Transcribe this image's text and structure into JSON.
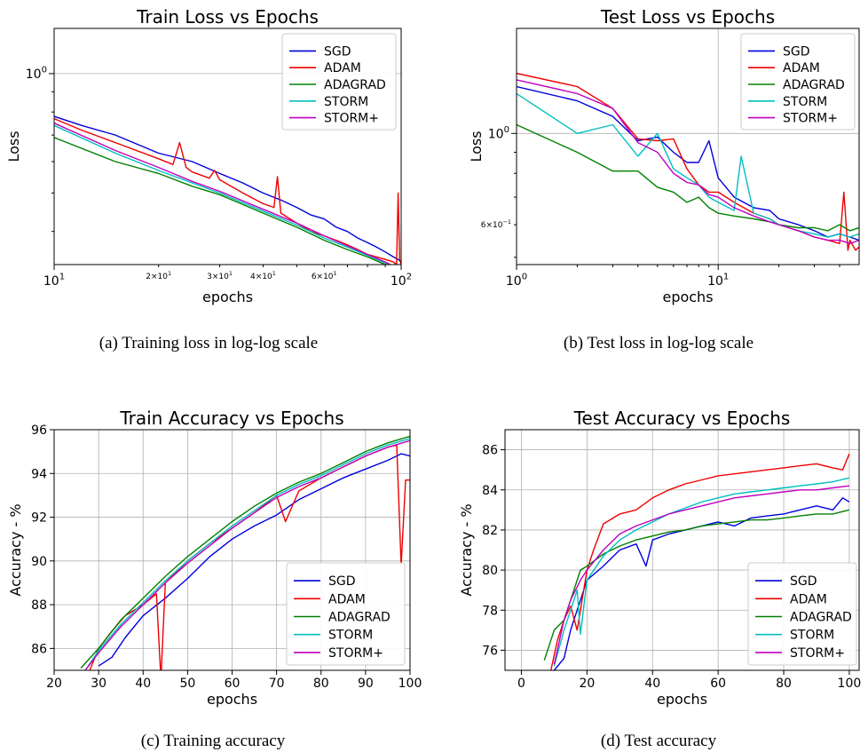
{
  "colors": {
    "SGD": "#0000dd",
    "ADAM": "#ee0000",
    "ADAGRAD": "#008000",
    "STORM": "#00bfbf",
    "STORM+": "#bf00bf"
  },
  "captions": [
    "(a) Training loss in log-log scale",
    "(b) Test loss in log-log scale",
    "(c) Training accuracy",
    "(d) Test accuracy"
  ],
  "chart_data": [
    {
      "type": "line",
      "title": "Train Loss vs Epochs",
      "xlabel": "epochs",
      "ylabel": "Loss",
      "xscale": "log",
      "yscale": "log",
      "xlim": [
        10,
        100
      ],
      "ylim": [
        0.33,
        1.3
      ],
      "legend_position": "top-right",
      "x_ticks": [
        {
          "v": 10,
          "b": "10",
          "e": "1"
        },
        {
          "v": 100,
          "b": "10",
          "e": "2"
        }
      ],
      "x_minor_ticks": [
        {
          "v": 20,
          "b": "2×10",
          "e": "1"
        },
        {
          "v": 30,
          "b": "3×10",
          "e": "1"
        },
        {
          "v": 40,
          "b": "4×10",
          "e": "1"
        },
        {
          "v": 60,
          "b": "6×10",
          "e": "1"
        }
      ],
      "y_ticks": [
        {
          "v": 1,
          "b": "10",
          "e": "0"
        }
      ],
      "series": [
        {
          "name": "SGD",
          "x": [
            10,
            12,
            15,
            20,
            25,
            30,
            35,
            40,
            45,
            50,
            55,
            60,
            65,
            70,
            75,
            80,
            85,
            90,
            95,
            98,
            100
          ],
          "y": [
            0.78,
            0.74,
            0.7,
            0.63,
            0.6,
            0.56,
            0.53,
            0.5,
            0.48,
            0.46,
            0.44,
            0.43,
            0.41,
            0.4,
            0.385,
            0.375,
            0.365,
            0.355,
            0.345,
            0.34,
            0.335
          ]
        },
        {
          "name": "ADAM",
          "x": [
            10,
            12,
            15,
            20,
            22,
            23,
            24,
            25,
            28,
            29,
            30,
            35,
            40,
            43,
            44,
            45,
            50,
            55,
            60,
            65,
            70,
            75,
            80,
            85,
            90,
            95,
            97,
            98,
            99,
            100
          ],
          "y": [
            0.77,
            0.72,
            0.67,
            0.61,
            0.59,
            0.67,
            0.58,
            0.565,
            0.545,
            0.57,
            0.54,
            0.5,
            0.47,
            0.46,
            0.55,
            0.445,
            0.42,
            0.4,
            0.39,
            0.38,
            0.37,
            0.36,
            0.35,
            0.345,
            0.34,
            0.335,
            0.33,
            0.5,
            0.34,
            0.33
          ]
        },
        {
          "name": "ADAGRAD",
          "x": [
            10,
            15,
            20,
            25,
            30,
            40,
            50,
            60,
            70,
            80,
            90,
            100
          ],
          "y": [
            0.69,
            0.6,
            0.56,
            0.52,
            0.495,
            0.445,
            0.41,
            0.38,
            0.36,
            0.345,
            0.33,
            0.315
          ]
        },
        {
          "name": "STORM",
          "x": [
            10,
            15,
            20,
            25,
            30,
            40,
            50,
            60,
            70,
            80,
            90,
            100
          ],
          "y": [
            0.74,
            0.63,
            0.57,
            0.53,
            0.5,
            0.45,
            0.415,
            0.385,
            0.365,
            0.348,
            0.333,
            0.318
          ]
        },
        {
          "name": "STORM+",
          "x": [
            10,
            15,
            20,
            25,
            30,
            40,
            50,
            60,
            70,
            80,
            90,
            100
          ],
          "y": [
            0.75,
            0.64,
            0.58,
            0.535,
            0.505,
            0.455,
            0.42,
            0.39,
            0.368,
            0.35,
            0.335,
            0.32
          ]
        }
      ]
    },
    {
      "type": "line",
      "title": "Test Loss vs Epochs",
      "xlabel": "epochs",
      "ylabel": "Loss",
      "xscale": "log",
      "yscale": "log",
      "xlim": [
        1,
        50
      ],
      "ylim": [
        0.48,
        1.8
      ],
      "legend_position": "top-right",
      "x_ticks": [
        {
          "v": 1,
          "b": "10",
          "e": "0"
        },
        {
          "v": 10,
          "b": "10",
          "e": "1"
        }
      ],
      "y_ticks": [
        {
          "v": 1,
          "b": "10",
          "e": "0"
        }
      ],
      "y_minor_ticks": [
        {
          "v": 0.6,
          "b": "6×10",
          "e": "−1"
        }
      ],
      "series": [
        {
          "name": "SGD",
          "x": [
            1,
            2,
            3,
            4,
            5,
            6,
            7,
            8,
            9,
            10,
            12,
            15,
            18,
            20,
            25,
            30,
            35,
            40,
            45,
            50
          ],
          "y": [
            1.3,
            1.2,
            1.1,
            0.96,
            0.98,
            0.9,
            0.85,
            0.85,
            0.96,
            0.78,
            0.7,
            0.66,
            0.65,
            0.62,
            0.6,
            0.58,
            0.56,
            0.57,
            0.56,
            0.55
          ]
        },
        {
          "name": "ADAM",
          "x": [
            1,
            2,
            3,
            4,
            5,
            6,
            7,
            8,
            9,
            10,
            12,
            15,
            18,
            20,
            25,
            30,
            35,
            40,
            42,
            44,
            45,
            48,
            50
          ],
          "y": [
            1.4,
            1.3,
            1.15,
            0.97,
            0.96,
            0.97,
            0.82,
            0.75,
            0.72,
            0.72,
            0.68,
            0.64,
            0.62,
            0.6,
            0.58,
            0.56,
            0.55,
            0.54,
            0.72,
            0.52,
            0.55,
            0.52,
            0.53
          ]
        },
        {
          "name": "ADAGRAD",
          "x": [
            1,
            2,
            3,
            4,
            5,
            6,
            7,
            8,
            9,
            10,
            12,
            15,
            18,
            20,
            25,
            30,
            35,
            40,
            45,
            50
          ],
          "y": [
            1.05,
            0.9,
            0.81,
            0.81,
            0.74,
            0.72,
            0.68,
            0.7,
            0.66,
            0.64,
            0.63,
            0.62,
            0.61,
            0.6,
            0.59,
            0.59,
            0.58,
            0.6,
            0.58,
            0.59
          ]
        },
        {
          "name": "STORM",
          "x": [
            1,
            2,
            3,
            4,
            5,
            6,
            7,
            8,
            9,
            10,
            12,
            13,
            15,
            18,
            20,
            25,
            30,
            35,
            40,
            45,
            50
          ],
          "y": [
            1.25,
            1.0,
            1.05,
            0.88,
            1.0,
            0.82,
            0.78,
            0.75,
            0.7,
            0.68,
            0.65,
            0.88,
            0.64,
            0.62,
            0.6,
            0.58,
            0.57,
            0.56,
            0.57,
            0.56,
            0.57
          ]
        },
        {
          "name": "STORM+",
          "x": [
            1,
            2,
            3,
            4,
            5,
            6,
            7,
            8,
            9,
            10,
            12,
            15,
            18,
            20,
            25,
            30,
            35,
            40,
            45,
            50
          ],
          "y": [
            1.35,
            1.25,
            1.15,
            0.95,
            0.9,
            0.8,
            0.76,
            0.75,
            0.71,
            0.7,
            0.66,
            0.63,
            0.61,
            0.6,
            0.58,
            0.56,
            0.55,
            0.55,
            0.54,
            0.55
          ]
        }
      ]
    },
    {
      "type": "line",
      "title": "Train Accuracy vs Epochs",
      "xlabel": "epochs",
      "ylabel": "Accuracy - %",
      "xlim": [
        20,
        100
      ],
      "ylim": [
        85,
        96
      ],
      "grid": true,
      "legend_position": "lower-right",
      "x_ticks": [
        20,
        30,
        40,
        50,
        60,
        70,
        80,
        90,
        100
      ],
      "y_ticks": [
        86,
        88,
        90,
        92,
        94,
        96
      ],
      "series": [
        {
          "name": "SGD",
          "x": [
            30,
            33,
            36,
            40,
            45,
            50,
            55,
            60,
            65,
            70,
            75,
            80,
            85,
            90,
            95,
            98,
            100
          ],
          "y": [
            85.2,
            85.6,
            86.5,
            87.5,
            88.3,
            89.2,
            90.2,
            91.0,
            91.6,
            92.1,
            92.8,
            93.3,
            93.8,
            94.2,
            94.6,
            94.9,
            94.8
          ]
        },
        {
          "name": "ADAM",
          "x": [
            28,
            30,
            33,
            36,
            40,
            43,
            44,
            45,
            50,
            55,
            60,
            65,
            70,
            72,
            75,
            80,
            85,
            90,
            95,
            97,
            98,
            99,
            100
          ],
          "y": [
            85.0,
            86.0,
            86.8,
            87.5,
            88.0,
            88.5,
            84.6,
            89.0,
            90.0,
            90.8,
            91.5,
            92.2,
            93.0,
            91.8,
            93.2,
            93.8,
            94.3,
            94.8,
            95.2,
            95.3,
            89.8,
            93.7,
            93.7
          ]
        },
        {
          "name": "ADAGRAD",
          "x": [
            26,
            30,
            35,
            40,
            45,
            50,
            55,
            60,
            65,
            70,
            75,
            80,
            85,
            90,
            95,
            100
          ],
          "y": [
            85.1,
            86.0,
            87.3,
            88.3,
            89.3,
            90.2,
            91.0,
            91.8,
            92.5,
            93.1,
            93.6,
            94.0,
            94.5,
            95.0,
            95.4,
            95.7
          ]
        },
        {
          "name": "STORM",
          "x": [
            27,
            30,
            35,
            40,
            45,
            50,
            55,
            60,
            65,
            70,
            75,
            80,
            85,
            90,
            95,
            100
          ],
          "y": [
            85.0,
            85.9,
            87.1,
            88.1,
            89.1,
            90.0,
            90.8,
            91.6,
            92.3,
            93.0,
            93.5,
            93.9,
            94.4,
            94.9,
            95.3,
            95.6
          ]
        },
        {
          "name": "STORM+",
          "x": [
            27,
            30,
            35,
            40,
            45,
            50,
            55,
            60,
            65,
            70,
            75,
            80,
            85,
            90,
            95,
            100
          ],
          "y": [
            85.0,
            85.8,
            87.0,
            88.0,
            89.0,
            89.9,
            90.7,
            91.5,
            92.2,
            92.9,
            93.4,
            93.8,
            94.3,
            94.8,
            95.2,
            95.5
          ]
        }
      ]
    },
    {
      "type": "line",
      "title": "Test Accuracy vs Epochs",
      "xlabel": "epochs",
      "ylabel": "Accuracy - %",
      "xlim": [
        -5,
        103
      ],
      "ylim": [
        75,
        87
      ],
      "grid": true,
      "legend_position": "lower-right",
      "x_ticks": [
        0,
        20,
        40,
        60,
        80,
        100
      ],
      "y_ticks": [
        76,
        78,
        80,
        82,
        84,
        86
      ],
      "series": [
        {
          "name": "SGD",
          "x": [
            10,
            13,
            15,
            18,
            20,
            25,
            30,
            35,
            38,
            40,
            45,
            50,
            55,
            60,
            65,
            70,
            75,
            80,
            85,
            90,
            95,
            98,
            100
          ],
          "y": [
            75.0,
            75.6,
            77.0,
            78.5,
            79.5,
            80.2,
            81.0,
            81.3,
            80.2,
            81.5,
            81.8,
            82.0,
            82.2,
            82.4,
            82.2,
            82.6,
            82.7,
            82.8,
            83.0,
            83.2,
            83.0,
            83.6,
            83.4
          ]
        },
        {
          "name": "ADAM",
          "x": [
            9,
            11,
            13,
            15,
            17,
            19,
            20,
            22,
            25,
            30,
            35,
            40,
            45,
            50,
            55,
            60,
            65,
            70,
            75,
            80,
            85,
            90,
            95,
            98,
            100
          ],
          "y": [
            75.0,
            76.5,
            77.5,
            78.2,
            77.0,
            79.0,
            80.0,
            81.0,
            82.3,
            82.8,
            83.0,
            83.6,
            84.0,
            84.3,
            84.5,
            84.7,
            84.8,
            84.9,
            85.0,
            85.1,
            85.2,
            85.3,
            85.1,
            85.0,
            85.8
          ]
        },
        {
          "name": "ADAGRAD",
          "x": [
            7,
            10,
            13,
            15,
            18,
            20,
            25,
            30,
            35,
            40,
            45,
            50,
            55,
            60,
            65,
            70,
            75,
            80,
            85,
            90,
            95,
            100
          ],
          "y": [
            75.5,
            77.0,
            77.5,
            78.5,
            80.0,
            80.2,
            80.8,
            81.2,
            81.5,
            81.7,
            81.9,
            82.0,
            82.2,
            82.3,
            82.4,
            82.5,
            82.5,
            82.6,
            82.7,
            82.8,
            82.8,
            83.0
          ]
        },
        {
          "name": "STORM",
          "x": [
            10,
            13,
            15,
            17,
            18,
            20,
            25,
            30,
            35,
            40,
            45,
            50,
            55,
            60,
            65,
            70,
            75,
            80,
            85,
            90,
            95,
            100
          ],
          "y": [
            75.2,
            77.0,
            78.0,
            79.0,
            76.8,
            79.5,
            80.7,
            81.5,
            82.0,
            82.4,
            82.8,
            83.1,
            83.4,
            83.6,
            83.8,
            83.9,
            84.0,
            84.1,
            84.2,
            84.3,
            84.4,
            84.6
          ]
        },
        {
          "name": "STORM+",
          "x": [
            10,
            13,
            15,
            18,
            20,
            25,
            30,
            35,
            40,
            45,
            50,
            55,
            60,
            65,
            70,
            75,
            80,
            85,
            90,
            95,
            100
          ],
          "y": [
            75.3,
            77.5,
            78.5,
            79.5,
            80.0,
            81.0,
            81.8,
            82.2,
            82.5,
            82.8,
            83.0,
            83.2,
            83.4,
            83.6,
            83.7,
            83.8,
            83.9,
            84.0,
            84.0,
            84.1,
            84.2
          ]
        }
      ]
    }
  ]
}
